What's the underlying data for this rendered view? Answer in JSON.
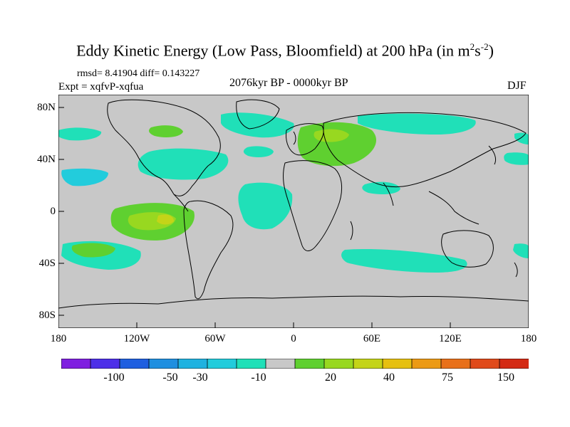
{
  "title_main": "Eddy Kinetic Energy (Low Pass, Bloomfield) at 200 hPa (in m",
  "title_sup1": "2",
  "title_mid": "s",
  "title_sup2": "-2",
  "title_end": ")",
  "stats": "rmsd= 8.41904 diff= 0.143227",
  "expt": "Expt = xqfvP-xqfua",
  "period": "2076kyr BP - 0000kyr BP",
  "season": "DJF",
  "y_ticks": [
    "80N",
    "40N",
    "0",
    "40S",
    "80S"
  ],
  "x_ticks": [
    "180",
    "120W",
    "60W",
    "0",
    "60E",
    "120E",
    "180"
  ],
  "colorbar": {
    "labels": [
      "-100",
      "-50",
      "-30",
      "-10",
      "20",
      "40",
      "75",
      "150"
    ],
    "colors": [
      "#7f1fe0",
      "#4d2fe8",
      "#1f5fe0",
      "#1f8fe0",
      "#1fb2e0",
      "#22ccdc",
      "#20e0b8",
      "#c8c8c8",
      "#5fd030",
      "#98d820",
      "#c4d418",
      "#e6c010",
      "#ec9a14",
      "#e8701a",
      "#e04a1a",
      "#d42a14"
    ]
  },
  "palette": {
    "land_sea_bg": "#c8c8c8",
    "neg_light": "#20e0b8",
    "neg_mid": "#22ccdc",
    "pos_light": "#5fd030",
    "pos_mid": "#98d820",
    "pos_high": "#c4d418"
  }
}
